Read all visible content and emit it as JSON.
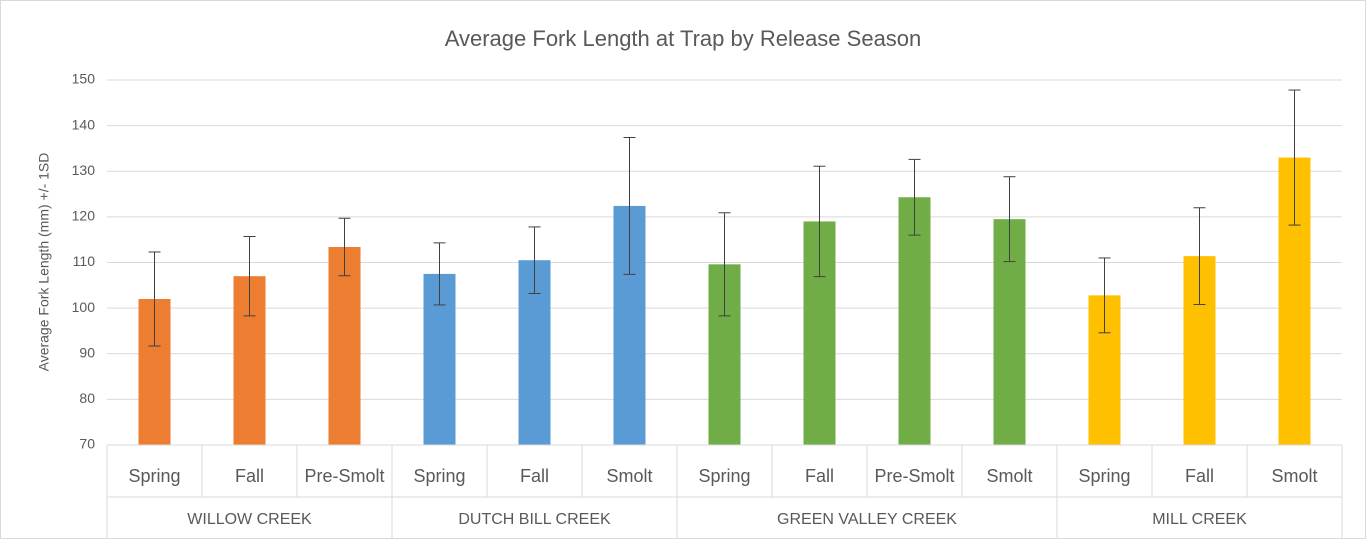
{
  "chart_data": {
    "type": "bar",
    "title": "Average Fork Length at Trap by Release Season",
    "y_label": "Average Fork Length (mm)  +/- 1SD",
    "ylim": [
      70,
      150
    ],
    "yticks": [
      70,
      80,
      90,
      100,
      110,
      120,
      130,
      140,
      150
    ],
    "grid": true,
    "groups": [
      {
        "name": "WILLOW CREEK",
        "color": "#ed7d31",
        "categories": [
          "Spring",
          "Fall",
          "Pre-Smolt"
        ],
        "values": [
          102,
          107,
          113.4
        ],
        "errors": [
          10.3,
          8.7,
          6.3
        ]
      },
      {
        "name": "DUTCH BILL CREEK",
        "color": "#5b9bd5",
        "categories": [
          "Spring",
          "Fall",
          "Smolt"
        ],
        "values": [
          107.5,
          110.5,
          122.4
        ],
        "errors": [
          6.8,
          7.3,
          15
        ]
      },
      {
        "name": "GREEN VALLEY CREEK",
        "color": "#70ad47",
        "categories": [
          "Spring",
          "Fall",
          "Pre-Smolt",
          "Smolt"
        ],
        "values": [
          109.6,
          119,
          124.3,
          119.5
        ],
        "errors": [
          11.3,
          12.1,
          8.3,
          9.3
        ]
      },
      {
        "name": "MILL CREEK",
        "color": "#ffc000",
        "categories": [
          "Spring",
          "Fall",
          "Smolt"
        ],
        "values": [
          102.8,
          111.4,
          133
        ],
        "errors": [
          8.2,
          10.6,
          14.8
        ]
      }
    ]
  }
}
